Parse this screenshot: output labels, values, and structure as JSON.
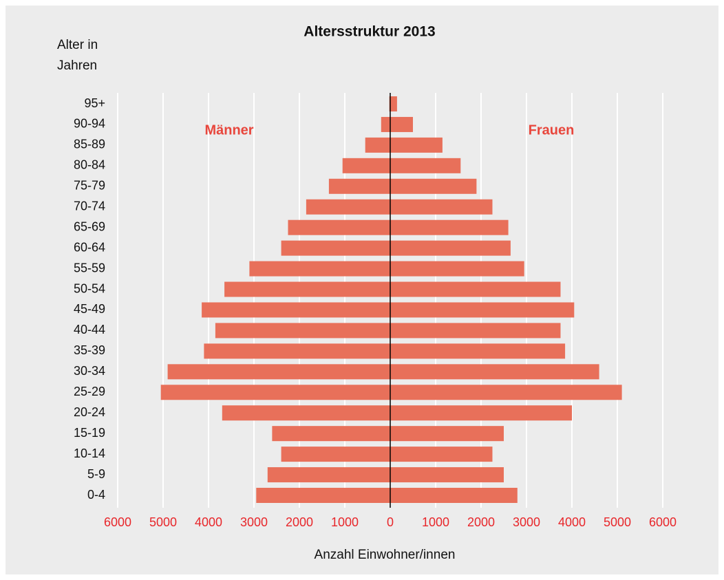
{
  "chart_data": {
    "type": "population-pyramid",
    "title": "Altersstruktur 2013",
    "ylabel": [
      "Alter in",
      "Jahren"
    ],
    "xlabel": "Anzahl Einwohner/innen",
    "categories": [
      "0-4",
      "5-9",
      "10-14",
      "15-19",
      "20-24",
      "25-29",
      "30-34",
      "35-39",
      "40-44",
      "45-49",
      "50-54",
      "55-59",
      "60-64",
      "65-69",
      "70-74",
      "75-79",
      "80-84",
      "85-89",
      "90-94",
      "95+"
    ],
    "series": [
      {
        "name": "Männer",
        "side": "left",
        "color": "#e8705a",
        "values": [
          2950,
          2700,
          2400,
          2600,
          3700,
          5050,
          4900,
          4100,
          3850,
          4150,
          3650,
          3100,
          2400,
          2250,
          1850,
          1350,
          1050,
          550,
          200,
          20
        ]
      },
      {
        "name": "Frauen",
        "side": "right",
        "color": "#e8705a",
        "values": [
          2800,
          2500,
          2250,
          2500,
          4000,
          5100,
          4600,
          3850,
          3750,
          4050,
          3750,
          2950,
          2650,
          2600,
          2250,
          1900,
          1550,
          1150,
          500,
          150
        ]
      }
    ],
    "xlim": [
      0,
      6000
    ],
    "xticks": [
      0,
      1000,
      2000,
      3000,
      4000,
      5000,
      6000
    ],
    "grid": true
  }
}
